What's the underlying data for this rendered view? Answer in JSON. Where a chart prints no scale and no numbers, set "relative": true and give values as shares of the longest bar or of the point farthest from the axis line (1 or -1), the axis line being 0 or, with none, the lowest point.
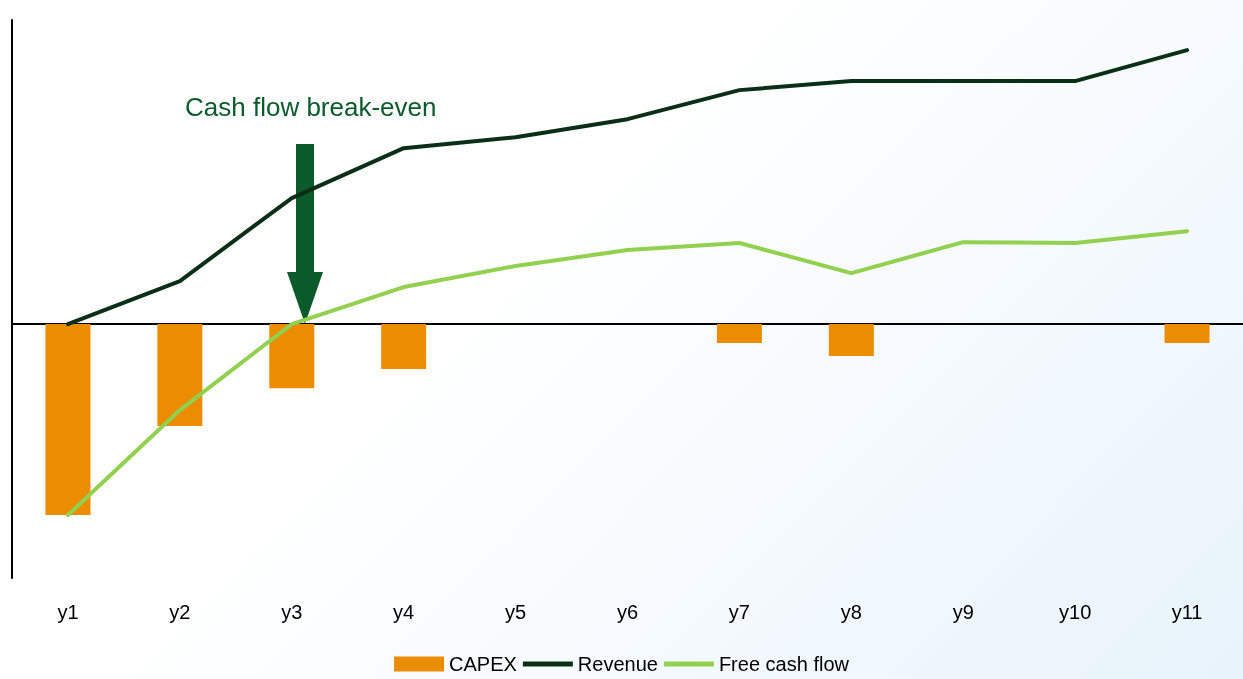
{
  "chart_data": {
    "type": "bar",
    "relative": true,
    "categories": [
      "y1",
      "y2",
      "y3",
      "y4",
      "y5",
      "y6",
      "y7",
      "y8",
      "y9",
      "y10",
      "y11"
    ],
    "series": [
      {
        "name": "CAPEX",
        "color": "#ec8c00",
        "values": [
          -0.697,
          -0.372,
          -0.234,
          -0.164,
          0,
          0,
          -0.069,
          -0.117,
          0,
          0,
          -0.069
        ]
      },
      {
        "name": "Revenue",
        "type": "line",
        "color": "#0b2e17",
        "values": [
          0,
          0.157,
          0.46,
          0.642,
          0.682,
          0.748,
          0.854,
          0.887,
          0.887,
          0.887,
          1
        ]
      },
      {
        "name": "Free cash flow",
        "type": "line",
        "color": "#92d050",
        "values": [
          -0.697,
          -0.314,
          0,
          0.135,
          0.212,
          0.27,
          0.296,
          0.186,
          0.299,
          0.296,
          0.339
        ]
      }
    ],
    "annotations": [
      "Cash flow break-even"
    ],
    "legend": "bottom",
    "grid": false,
    "marker": "none",
    "line_style": "solid"
  }
}
